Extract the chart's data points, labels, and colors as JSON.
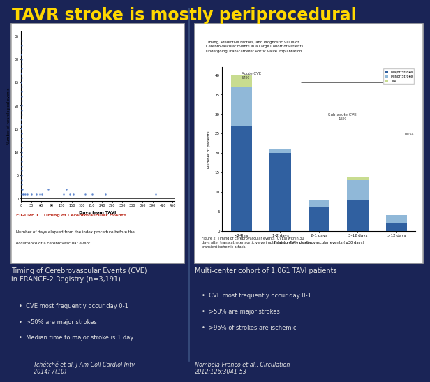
{
  "title": "TAVR stroke is mostly periprocedural",
  "title_color": "#FFD700",
  "background_color": "#1a2456",
  "left_panel": {
    "chart_title": "FIGURE 1   Timing of Cerebrovascular Events",
    "caption_line1": "Number of days elapsed from the index procedure before the",
    "caption_line2": "occurrence of a cerebrovascular event.",
    "xlabel": "Days from TAVI",
    "ylabel": "Number of neurological events",
    "yticks": [
      0,
      5,
      10,
      15,
      20,
      25,
      30,
      35
    ],
    "xticks": [
      0,
      30,
      60,
      90,
      120,
      150,
      180,
      210,
      240,
      270,
      300,
      330,
      360,
      390,
      420,
      450
    ]
  },
  "right_panel": {
    "dark_title": "Stroke",
    "paper_title": "Timing, Predictive Factors, and Prognostic Value of\nCerebrovascular Events in a Large Cohort of Patients\nUndergoing Transcatheter Aortic Valve Implantation",
    "categories": [
      "<24hrs",
      "1-2 days",
      "2-1 days",
      "3-12 days",
      ">12 days"
    ],
    "stroke_vals": [
      27,
      20,
      6,
      8,
      2
    ],
    "tia_vals": [
      3,
      0,
      0,
      1,
      0
    ],
    "minor_vals": [
      10,
      1,
      2,
      5,
      2
    ],
    "xlabel": "Time to early cerebrovascular events (≤30 days)",
    "ylabel": "Number of patients",
    "yticks": [
      0,
      5,
      10,
      15,
      20,
      25,
      30,
      35,
      40
    ],
    "legend_labels": [
      "TIA",
      "Minor Stroke",
      "Major Stroke",
      "n=54"
    ],
    "annotation_left": "Acute CVE\n54%",
    "annotation_right": "Sub-acute CVE\n16%",
    "caption": "Figure 2. Timing of cerebrovascular events (CVEs) within 30\ndays after transcatheter aortic valve implantation. TIA indicates\ntransient ischemic attack."
  },
  "left_text_header": "Timing of Cerebrovascular Events (CVE)\nin FRANCE-2 Registry (n=3,191)",
  "left_bullets": [
    "CVE most frequently occur day 0-1",
    ">50% are major strokes",
    "Median time to major stroke is 1 day"
  ],
  "right_text_header": "Multi-center cohort of 1,061 TAVI patients",
  "right_bullets": [
    "CVE most frequently occur day 0-1",
    ">50% are major strokes",
    ">95% of strokes are ischemic"
  ],
  "left_citation": "Tchétché et al. J Am Coll Cardiol Intv\n2014; 7(10)",
  "right_citation": "Nombela-Franco et al., Circulation\n2012;126:3041-53",
  "text_color": "#e0e0e0",
  "bullet_color": "#e0e0e0",
  "citation_color": "#e0e0e0"
}
